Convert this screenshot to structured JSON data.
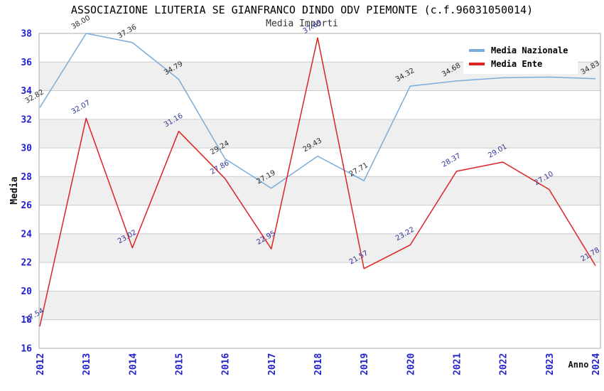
{
  "chart": {
    "title": "ASSOCIAZIONE LIUTERIA SE GIANFRANCO DINDO ODV PIEMONTE (c.f.96031050014)",
    "subtitle": "Media Importi"
  },
  "colors": {
    "background": "#ffffff",
    "band": "#efefef",
    "grid": "#cccccc",
    "frame": "#aaaaaa",
    "tick_label": "#2222cc",
    "axis_title": "#111111",
    "legend_bg": "#ffffff",
    "legend_text": "#000000"
  },
  "chart_data": {
    "type": "line",
    "title": "ASSOCIAZIONE LIUTERIA SE GIANFRANCO DINDO ODV PIEMONTE (c.f.96031050014)",
    "subtitle": "Media Importi",
    "xlabel": "Anno",
    "ylabel": "Media",
    "ylim": [
      16,
      38
    ],
    "ytick_step": 2,
    "grid": "horizontal-bands",
    "legend_position": "top-right",
    "categories": [
      "2012",
      "2013",
      "2014",
      "2015",
      "2016",
      "2017",
      "2018",
      "2019",
      "2020",
      "2021",
      "2022",
      "2023",
      "2024"
    ],
    "series": [
      {
        "name": "Media Nazionale",
        "color": "#79acda",
        "label_color": "#2a2a2a",
        "values": [
          32.82,
          38.0,
          37.36,
          34.79,
          29.24,
          27.19,
          29.43,
          27.71,
          34.32,
          34.68,
          34.9,
          34.95,
          34.83
        ],
        "labels_hidden_by_legend": [
          "2022",
          "2023"
        ]
      },
      {
        "name": "Media Ente",
        "color": "#dd2222",
        "label_color": "#333399",
        "values": [
          17.54,
          32.07,
          23.02,
          31.16,
          27.86,
          22.95,
          37.69,
          21.57,
          23.22,
          28.37,
          29.01,
          27.1,
          21.78
        ],
        "labels_hidden_by_legend": []
      }
    ]
  }
}
